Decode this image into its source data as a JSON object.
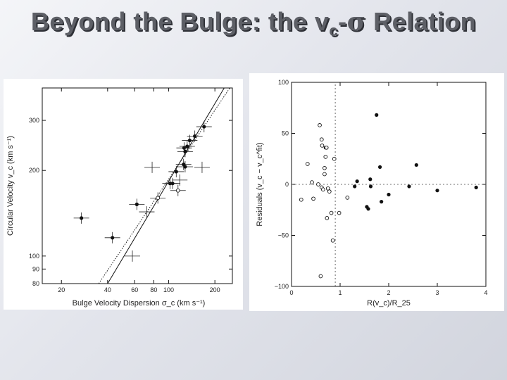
{
  "slide": {
    "title_main": "Beyond the Bulge: the v",
    "title_sub": "c",
    "title_dash": "-",
    "title_sigma": "σ",
    "title_end": " Relation"
  },
  "chart_data": [
    {
      "type": "scatter",
      "xlabel": "Bulge Velocity Dispersion σ_c (km s⁻¹)",
      "ylabel": "Circular Velocity v_c (km s⁻¹)",
      "xscale": "log",
      "yscale": "log",
      "xlim": [
        15,
        260
      ],
      "ylim": [
        80,
        390
      ],
      "xticks": [
        20,
        40,
        60,
        80,
        100,
        200
      ],
      "xtick_labels": [
        "20",
        "40",
        "60",
        "80",
        "100",
        "200"
      ],
      "yticks": [
        80,
        90,
        100,
        200,
        300
      ],
      "ytick_labels": [
        "80",
        "90",
        "100",
        "200",
        "300"
      ],
      "series": [
        {
          "marker": "filled",
          "points": [
            [
              27,
              136
            ],
            [
              43,
              116
            ],
            [
              62,
              152
            ],
            [
              102,
              180
            ],
            [
              106,
              180
            ],
            [
              112,
              198
            ],
            [
              125,
              210
            ],
            [
              128,
              206
            ],
            [
              126,
              240
            ],
            [
              132,
              243
            ],
            [
              137,
              255
            ],
            [
              128,
              233
            ],
            [
              148,
              264
            ],
            [
              170,
              285
            ]
          ]
        },
        {
          "marker": "open",
          "points": [
            [
              85,
              160
            ],
            [
              115,
              170
            ]
          ]
        },
        {
          "marker": "none",
          "points": [
            [
              58,
              100
            ],
            [
              72,
              143
            ],
            [
              118,
              185
            ],
            [
              78,
              205
            ],
            [
              165,
              205
            ]
          ]
        }
      ],
      "lines": [
        {
          "style": "solid",
          "points": [
            [
              40,
              80
            ],
            [
              230,
              390
            ]
          ]
        },
        {
          "style": "dotted",
          "points": [
            [
              35,
              80
            ],
            [
              250,
              390
            ]
          ]
        }
      ]
    },
    {
      "type": "scatter",
      "xlabel": "R(v_c)/R_25",
      "ylabel": "Residuals (v_c − v_c^fit)",
      "xlim": [
        0,
        4
      ],
      "ylim": [
        -100,
        100
      ],
      "xticks": [
        0,
        1,
        2,
        3,
        4
      ],
      "xtick_labels": [
        "0",
        "1",
        "2",
        "3",
        "4"
      ],
      "yticks": [
        -100,
        -50,
        0,
        50,
        100
      ],
      "ytick_labels": [
        "−100",
        "−50",
        "0",
        "50",
        "100"
      ],
      "reference_lines": {
        "y": 0,
        "x": 0.9
      },
      "series": [
        {
          "marker": "filled",
          "points": [
            [
              0.7,
              36
            ],
            [
              1.3,
              -2
            ],
            [
              1.35,
              3
            ],
            [
              1.55,
              -22
            ],
            [
              1.58,
              -24
            ],
            [
              1.62,
              5
            ],
            [
              1.63,
              -2
            ],
            [
              1.75,
              68
            ],
            [
              1.82,
              17
            ],
            [
              1.85,
              -17
            ],
            [
              2.0,
              -10
            ],
            [
              2.42,
              -2
            ],
            [
              2.57,
              19
            ],
            [
              3.0,
              -6
            ],
            [
              3.8,
              -3
            ]
          ]
        },
        {
          "marker": "open",
          "points": [
            [
              0.2,
              -15
            ],
            [
              0.33,
              20
            ],
            [
              0.45,
              -14
            ],
            [
              0.42,
              2
            ],
            [
              0.58,
              58
            ],
            [
              0.62,
              44
            ],
            [
              0.63,
              38
            ],
            [
              0.62,
              -3
            ],
            [
              0.6,
              -90
            ],
            [
              0.65,
              -5
            ],
            [
              0.68,
              10
            ],
            [
              0.68,
              16
            ],
            [
              0.7,
              27
            ],
            [
              0.72,
              36
            ],
            [
              0.73,
              -33
            ],
            [
              0.75,
              -4
            ],
            [
              0.78,
              -7
            ],
            [
              0.82,
              -28
            ],
            [
              0.85,
              -55
            ],
            [
              0.88,
              25
            ],
            [
              0.98,
              -28
            ],
            [
              1.15,
              -13
            ],
            [
              0.55,
              0
            ]
          ]
        }
      ]
    }
  ]
}
